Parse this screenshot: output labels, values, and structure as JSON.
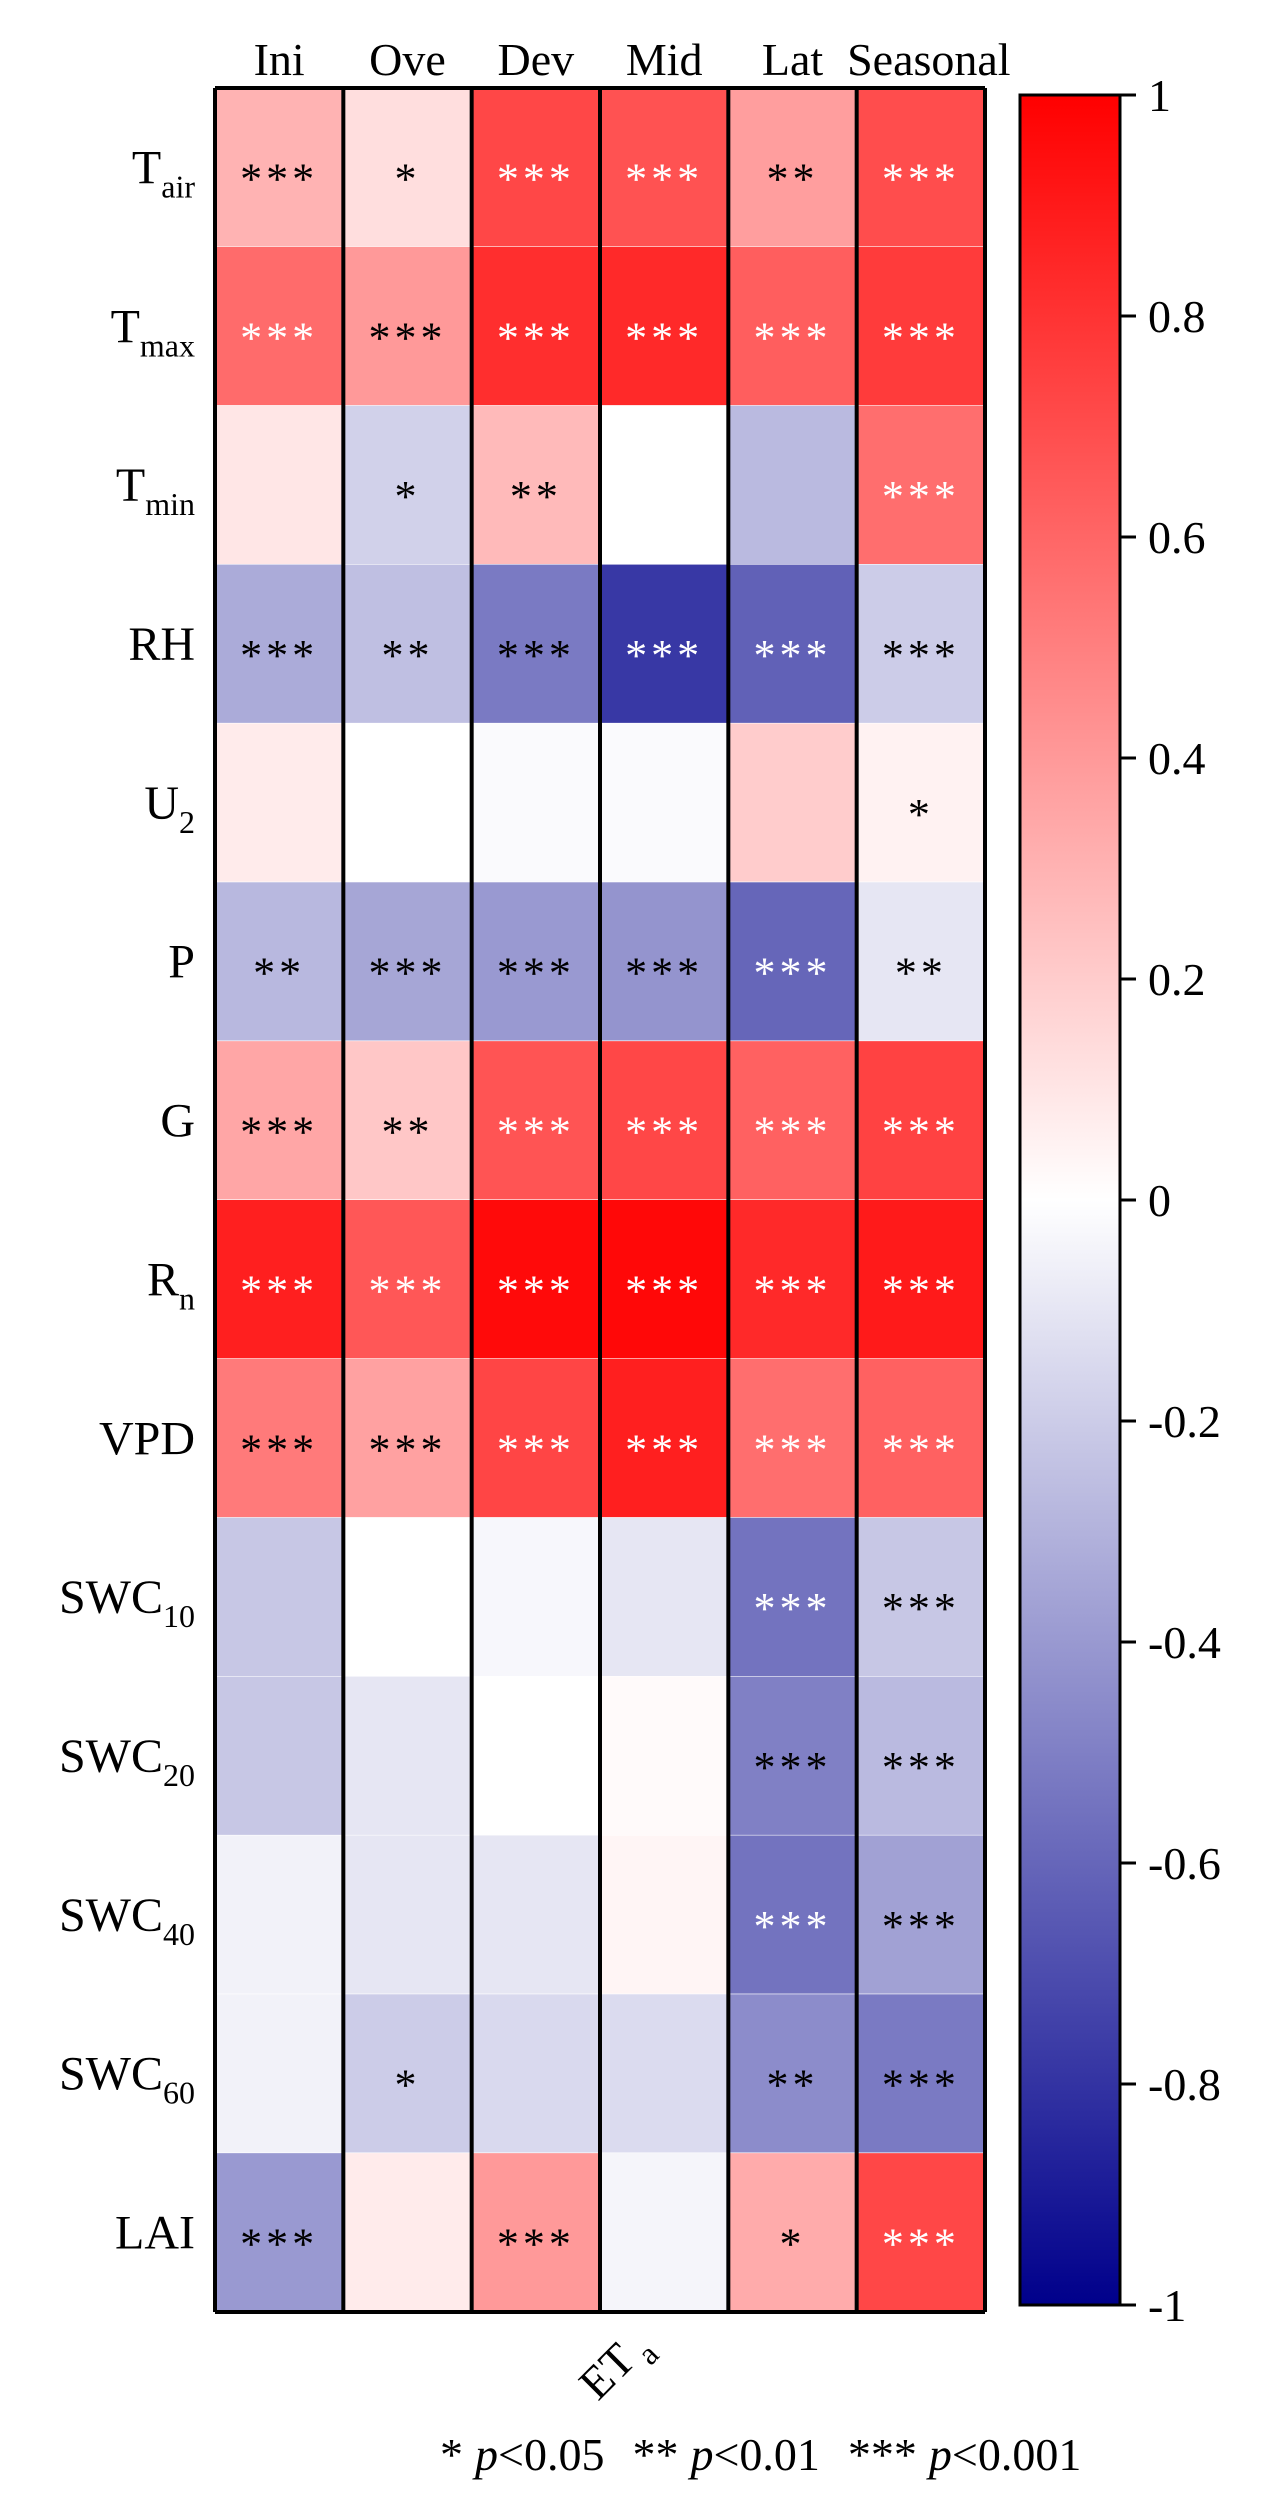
{
  "chart_data": {
    "type": "heatmap",
    "title": "",
    "xlabel": {
      "main": "ET",
      "sub": "a"
    },
    "columns": [
      "Ini",
      "Ove",
      "Dev",
      "Mid",
      "Lat",
      "Seasonal"
    ],
    "rows": [
      {
        "main": "T",
        "sub": "air"
      },
      {
        "main": "T",
        "sub": "max"
      },
      {
        "main": "T",
        "sub": "min"
      },
      {
        "main": "RH",
        "sub": ""
      },
      {
        "main": "U",
        "sub": "2"
      },
      {
        "main": "P",
        "sub": ""
      },
      {
        "main": "G",
        "sub": ""
      },
      {
        "main": "R",
        "sub": "n"
      },
      {
        "main": "VPD",
        "sub": ""
      },
      {
        "main": "SWC",
        "sub": "10"
      },
      {
        "main": "SWC",
        "sub": "20"
      },
      {
        "main": "SWC",
        "sub": "40"
      },
      {
        "main": "SWC",
        "sub": "60"
      },
      {
        "main": "LAI",
        "sub": ""
      }
    ],
    "values": [
      [
        0.3,
        0.13,
        0.72,
        0.68,
        0.38,
        0.7
      ],
      [
        0.58,
        0.4,
        0.82,
        0.84,
        0.63,
        0.77
      ],
      [
        0.1,
        -0.18,
        0.27,
        0.0,
        -0.27,
        0.57
      ],
      [
        -0.33,
        -0.25,
        -0.52,
        -0.78,
        -0.62,
        -0.2
      ],
      [
        0.08,
        0.0,
        -0.02,
        -0.02,
        0.2,
        0.05
      ],
      [
        -0.28,
        -0.35,
        -0.4,
        -0.42,
        -0.6,
        -0.1
      ],
      [
        0.35,
        0.22,
        0.67,
        0.72,
        0.62,
        0.74
      ],
      [
        0.88,
        0.66,
        0.96,
        0.97,
        0.84,
        0.9
      ],
      [
        0.52,
        0.37,
        0.73,
        0.88,
        0.57,
        0.62
      ],
      [
        -0.22,
        0.0,
        -0.03,
        -0.1,
        -0.55,
        -0.22
      ],
      [
        -0.22,
        -0.1,
        0.0,
        0.02,
        -0.5,
        -0.27
      ],
      [
        -0.05,
        -0.1,
        -0.1,
        0.04,
        -0.55,
        -0.37
      ],
      [
        -0.05,
        -0.2,
        -0.15,
        -0.14,
        -0.45,
        -0.52
      ],
      [
        -0.4,
        0.08,
        0.4,
        -0.04,
        0.33,
        0.72
      ]
    ],
    "significance": [
      [
        "***",
        "*",
        "***",
        "***",
        "**",
        "***"
      ],
      [
        "***",
        "***",
        "***",
        "***",
        "***",
        "***"
      ],
      [
        "",
        "*",
        "**",
        "",
        "",
        "***"
      ],
      [
        "***",
        "**",
        "***",
        "***",
        "***",
        "***"
      ],
      [
        "",
        "",
        "",
        "",
        "",
        "*"
      ],
      [
        "**",
        "***",
        "***",
        "***",
        "***",
        "**"
      ],
      [
        "***",
        "**",
        "***",
        "***",
        "***",
        "***"
      ],
      [
        "***",
        "***",
        "***",
        "***",
        "***",
        "***"
      ],
      [
        "***",
        "***",
        "***",
        "***",
        "***",
        "***"
      ],
      [
        "",
        "",
        "",
        "",
        "***",
        "***"
      ],
      [
        "",
        "",
        "",
        "",
        "***",
        "***"
      ],
      [
        "",
        "",
        "",
        "",
        "***",
        "***"
      ],
      [
        "",
        "*",
        "",
        "",
        "**",
        "***"
      ],
      [
        "***",
        "",
        "***",
        "",
        "*",
        "***"
      ]
    ],
    "colorbar": {
      "min": -1,
      "max": 1,
      "ticks": [
        "1",
        "0.8",
        "0.6",
        "0.4",
        "0.2",
        "0",
        "-0.2",
        "-0.4",
        "-0.6",
        "-0.8",
        "-1"
      ],
      "color_low": "#00008b",
      "color_mid": "#ffffff",
      "color_high": "#ff0000"
    },
    "legend": [
      {
        "stars": "*",
        "p": "p",
        "threshold": "<0.05"
      },
      {
        "stars": "**",
        "p": "p",
        "threshold": "<0.01"
      },
      {
        "stars": "***",
        "p": "p",
        "threshold": "<0.001"
      }
    ]
  }
}
